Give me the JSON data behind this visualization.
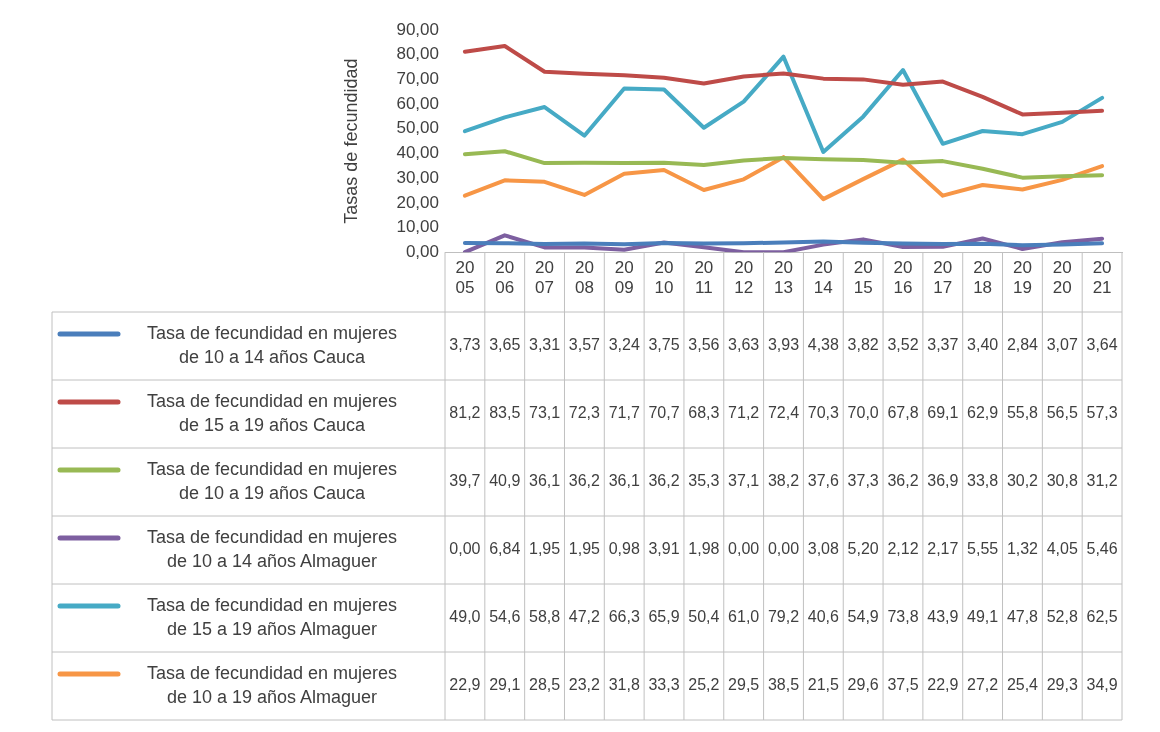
{
  "chart_data": {
    "type": "line",
    "ylabel": "Tasas de fecundidad",
    "categories": [
      "2005",
      "2006",
      "2007",
      "2008",
      "2009",
      "2010",
      "2011",
      "2012",
      "2013",
      "2014",
      "2015",
      "2016",
      "2017",
      "2018",
      "2019",
      "2020",
      "2021"
    ],
    "ylim": [
      0,
      90
    ],
    "yticks": [
      {
        "value": 0,
        "label": "0,00"
      },
      {
        "value": 10,
        "label": "10,00"
      },
      {
        "value": 20,
        "label": "20,00"
      },
      {
        "value": 30,
        "label": "30,00"
      },
      {
        "value": 40,
        "label": "40,00"
      },
      {
        "value": 50,
        "label": "50,00"
      },
      {
        "value": 60,
        "label": "60,00"
      },
      {
        "value": 70,
        "label": "70,00"
      },
      {
        "value": 80,
        "label": "80,00"
      },
      {
        "value": 90,
        "label": "90,00"
      }
    ],
    "grid": false,
    "legend": "bottom",
    "marker": "none",
    "line_style": "solid",
    "series": [
      {
        "name": "Tasa de fecundidad en mujeres de 10 a 14 años Cauca",
        "color": "#4a7ebb",
        "values": [
          3.73,
          3.65,
          3.31,
          3.57,
          3.24,
          3.75,
          3.56,
          3.63,
          3.93,
          4.38,
          3.82,
          3.52,
          3.37,
          3.4,
          2.84,
          3.07,
          3.64
        ],
        "value_labels": [
          "3,73",
          "3,65",
          "3,31",
          "3,57",
          "3,24",
          "3,75",
          "3,56",
          "3,63",
          "3,93",
          "4,38",
          "3,82",
          "3,52",
          "3,37",
          "3,40",
          "2,84",
          "3,07",
          "3,64"
        ]
      },
      {
        "name": "Tasa de fecundidad en mujeres de 15 a 19 años Cauca",
        "color": "#be4b48",
        "values": [
          81.2,
          83.5,
          73.1,
          72.3,
          71.7,
          70.7,
          68.3,
          71.2,
          72.4,
          70.3,
          70.0,
          67.8,
          69.1,
          62.9,
          55.8,
          56.5,
          57.3
        ],
        "value_labels": [
          "81,2",
          "83,5",
          "73,1",
          "72,3",
          "71,7",
          "70,7",
          "68,3",
          "71,2",
          "72,4",
          "70,3",
          "70,0",
          "67,8",
          "69,1",
          "62,9",
          "55,8",
          "56,5",
          "57,3"
        ]
      },
      {
        "name": "Tasa de fecundidad en mujeres de 10 a 19 años Cauca",
        "color": "#98b954",
        "values": [
          39.7,
          40.9,
          36.1,
          36.2,
          36.1,
          36.2,
          35.3,
          37.1,
          38.2,
          37.6,
          37.3,
          36.2,
          36.9,
          33.8,
          30.2,
          30.8,
          31.2
        ],
        "value_labels": [
          "39,7",
          "40,9",
          "36,1",
          "36,2",
          "36,1",
          "36,2",
          "35,3",
          "37,1",
          "38,2",
          "37,6",
          "37,3",
          "36,2",
          "36,9",
          "33,8",
          "30,2",
          "30,8",
          "31,2"
        ]
      },
      {
        "name": "Tasa de fecundidad en mujeres de 10 a 14 años Almaguer",
        "color": "#7d5fa0",
        "values": [
          0.0,
          6.84,
          1.95,
          1.95,
          0.98,
          3.91,
          1.98,
          0.0,
          0.0,
          3.08,
          5.2,
          2.12,
          2.17,
          5.55,
          1.32,
          4.05,
          5.46
        ],
        "value_labels": [
          "0,00",
          "6,84",
          "1,95",
          "1,95",
          "0,98",
          "3,91",
          "1,98",
          "0,00",
          "0,00",
          "3,08",
          "5,20",
          "2,12",
          "2,17",
          "5,55",
          "1,32",
          "4,05",
          "5,46"
        ]
      },
      {
        "name": "Tasa de fecundidad en mujeres de 15 a 19 años Almaguer",
        "color": "#46aac5",
        "values": [
          49.0,
          54.6,
          58.8,
          47.2,
          66.3,
          65.9,
          50.4,
          61.0,
          79.2,
          40.6,
          54.9,
          73.8,
          43.9,
          49.1,
          47.8,
          52.8,
          62.5
        ],
        "value_labels": [
          "49,0",
          "54,6",
          "58,8",
          "47,2",
          "66,3",
          "65,9",
          "50,4",
          "61,0",
          "79,2",
          "40,6",
          "54,9",
          "73,8",
          "43,9",
          "49,1",
          "47,8",
          "52,8",
          "62,5"
        ]
      },
      {
        "name": "Tasa de fecundidad en mujeres de 10 a 19 años Almaguer",
        "color": "#f79646",
        "values": [
          22.9,
          29.1,
          28.5,
          23.2,
          31.8,
          33.3,
          25.2,
          29.5,
          38.5,
          21.5,
          29.6,
          37.5,
          22.9,
          27.2,
          25.4,
          29.3,
          34.9
        ],
        "value_labels": [
          "22,9",
          "29,1",
          "28,5",
          "23,2",
          "31,8",
          "33,3",
          "25,2",
          "29,5",
          "38,5",
          "21,5",
          "29,6",
          "37,5",
          "22,9",
          "27,2",
          "25,4",
          "29,3",
          "34,9"
        ]
      }
    ]
  }
}
